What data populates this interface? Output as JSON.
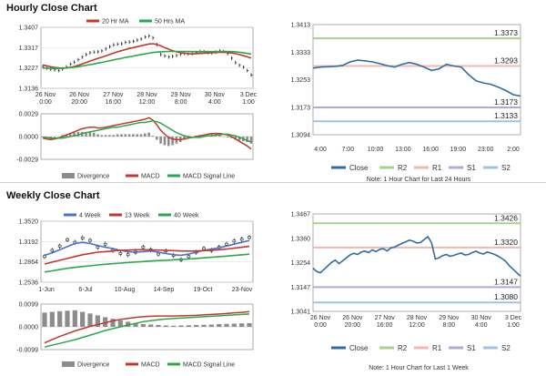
{
  "titles": {
    "hourly": "Hourly Close Chart",
    "weekly": "Weekly Close Chart"
  },
  "colors": {
    "ma_short": "#c0392b",
    "ma_long": "#2aa84a",
    "ma_4w": "#4b6fd1",
    "close": "#2e6da4",
    "r2": "#a9d18e",
    "r1": "#f4b6b0",
    "s1": "#b4a7d6",
    "s2": "#9dc3e6",
    "divergence": "#8c8c8c",
    "macd": "#c0392b",
    "signal": "#2aa84a"
  },
  "chart_data": [
    {
      "id": "hourly_price",
      "type": "line",
      "series": [
        {
          "name": "20 Hr MA",
          "color_key": "ma_short"
        },
        {
          "name": "50 Hrs MA",
          "color_key": "ma_long"
        }
      ],
      "y_ticks": [
        "1.3407",
        "1.3317",
        "1.3227",
        "1.3136"
      ],
      "ylim": [
        1.3136,
        1.3407
      ],
      "x_ticks": [
        [
          "26 Nov",
          "0:00"
        ],
        [
          "26 Nov",
          "20:00"
        ],
        [
          "27 Nov",
          "16:00"
        ],
        [
          "28 Nov",
          "12:00"
        ],
        [
          "29 Nov",
          "8:00"
        ],
        [
          "30 Nov",
          "4:00"
        ],
        [
          "3 Dec",
          "1:00"
        ]
      ],
      "price": [
        1.3232,
        1.3226,
        1.3221,
        1.3218,
        1.3215,
        1.3222,
        1.3231,
        1.3243,
        1.3252,
        1.3263,
        1.3275,
        1.3286,
        1.3294,
        1.3297,
        1.3298,
        1.3302,
        1.3311,
        1.3321,
        1.3329,
        1.3332,
        1.3334,
        1.334,
        1.3342,
        1.3345,
        1.335,
        1.3355,
        1.3364,
        1.3368,
        1.336,
        1.333,
        1.3286,
        1.328,
        1.3275,
        1.3278,
        1.3282,
        1.3287,
        1.3291,
        1.3289,
        1.329,
        1.3295,
        1.33,
        1.3298,
        1.3295,
        1.3293,
        1.3297,
        1.3302,
        1.33,
        1.329,
        1.327,
        1.325,
        1.3238,
        1.323,
        1.3215,
        1.3195
      ],
      "ma20": [
        1.324,
        1.3236,
        1.3232,
        1.3229,
        1.3227,
        1.3226,
        1.3227,
        1.3229,
        1.3233,
        1.3238,
        1.3244,
        1.325,
        1.3257,
        1.3263,
        1.3269,
        1.3274,
        1.328,
        1.3286,
        1.3292,
        1.3298,
        1.3303,
        1.3308,
        1.3313,
        1.3317,
        1.3321,
        1.3325,
        1.3329,
        1.3333,
        1.3334,
        1.3331,
        1.3325,
        1.3317,
        1.331,
        1.3303,
        1.3298,
        1.3294,
        1.3292,
        1.329,
        1.3289,
        1.329,
        1.3291,
        1.3292,
        1.3293,
        1.3294,
        1.3295,
        1.3296,
        1.3296,
        1.3295,
        1.3293,
        1.329,
        1.3286,
        1.3281,
        1.3276,
        1.327
      ],
      "ma50": [
        1.3226,
        1.3225,
        1.3224,
        1.3224,
        1.3224,
        1.3225,
        1.3226,
        1.3228,
        1.323,
        1.3232,
        1.3235,
        1.3238,
        1.3241,
        1.3244,
        1.3248,
        1.3251,
        1.3255,
        1.3258,
        1.3262,
        1.3266,
        1.3269,
        1.3273,
        1.3276,
        1.3279,
        1.3283,
        1.3286,
        1.3289,
        1.3292,
        1.3295,
        1.3297,
        1.3298,
        1.3299,
        1.33,
        1.33,
        1.33,
        1.33,
        1.33,
        1.33,
        1.3299,
        1.3299,
        1.3299,
        1.3299,
        1.3299,
        1.3299,
        1.3299,
        1.33,
        1.33,
        1.33,
        1.3299,
        1.3298,
        1.3296,
        1.3294,
        1.3291,
        1.3288
      ]
    },
    {
      "id": "hourly_macd",
      "type": "bar+line",
      "y_ticks": [
        "0.0029",
        "0.0000",
        "-0.0029"
      ],
      "ylim": [
        -0.0029,
        0.0029
      ],
      "legend": [
        "Divergence",
        "MACD",
        "MACD Signal Line"
      ],
      "macd": [
        -0.0002,
        -0.0003,
        -0.0004,
        -0.0003,
        -0.0002,
        0.0,
        0.0002,
        0.0004,
        0.0006,
        0.0008,
        0.001,
        0.0011,
        0.0012,
        0.0012,
        0.0011,
        0.0011,
        0.0012,
        0.0013,
        0.0014,
        0.0015,
        0.0016,
        0.0017,
        0.0018,
        0.0019,
        0.002,
        0.0021,
        0.0022,
        0.0024,
        0.0021,
        0.0015,
        0.0008,
        0.0003,
        -0.0001,
        -0.0003,
        -0.0004,
        -0.0004,
        -0.0003,
        -0.0002,
        -0.0001,
        0.0,
        0.0001,
        0.0002,
        0.0003,
        0.0004,
        0.0004,
        0.0004,
        0.0003,
        0.0002,
        0.0,
        -0.0003,
        -0.0006,
        -0.0009,
        -0.0012,
        -0.0016
      ],
      "signal": [
        -0.0001,
        -0.0001,
        -0.0002,
        -0.0002,
        -0.0002,
        -0.0002,
        -0.0001,
        0.0,
        0.0001,
        0.0002,
        0.0004,
        0.0005,
        0.0006,
        0.0007,
        0.0008,
        0.0009,
        0.001,
        0.0011,
        0.0012,
        0.0012,
        0.0013,
        0.0014,
        0.0015,
        0.0016,
        0.0017,
        0.0018,
        0.0018,
        0.0019,
        0.002,
        0.0019,
        0.0017,
        0.0014,
        0.0011,
        0.0008,
        0.0005,
        0.0003,
        0.0001,
        0.0,
        -0.0001,
        -0.0001,
        -0.0001,
        0.0,
        0.0001,
        0.0001,
        0.0002,
        0.0002,
        0.0003,
        0.0003,
        0.0002,
        0.0001,
        -0.0001,
        -0.0003,
        -0.0005,
        -0.0007
      ]
    },
    {
      "id": "hourly_close",
      "type": "line",
      "y_ticks": [
        "1.3413",
        "1.3333",
        "1.3253",
        "1.3173",
        "1.3094"
      ],
      "ylim": [
        1.3094,
        1.3413
      ],
      "x_ticks": [
        "4:00",
        "7:00",
        "10:00",
        "13:00",
        "16:00",
        "19:00",
        "23:00",
        "2:00"
      ],
      "levels": [
        {
          "name": "R2",
          "value": 1.3373,
          "label": "1.3373",
          "color_key": "r2"
        },
        {
          "name": "R1",
          "value": 1.3293,
          "label": "1.3293",
          "color_key": "r1"
        },
        {
          "name": "S1",
          "value": 1.3173,
          "label": "1.3173",
          "color_key": "s1"
        },
        {
          "name": "S2",
          "value": 1.3133,
          "label": "1.3133",
          "color_key": "s2"
        }
      ],
      "close": [
        1.3287,
        1.329,
        1.3291,
        1.3292,
        1.3295,
        1.3305,
        1.331,
        1.3308,
        1.3305,
        1.33,
        1.3294,
        1.329,
        1.3298,
        1.3303,
        1.3298,
        1.329,
        1.328,
        1.3285,
        1.3298,
        1.3293,
        1.329,
        1.3268,
        1.325,
        1.3244,
        1.324,
        1.3232,
        1.3222,
        1.321,
        1.3206
      ],
      "legend": [
        "Close",
        "R2",
        "R1",
        "S1",
        "S2"
      ],
      "note": "Note: 1 Hour Chart for Last 24 Hours"
    },
    {
      "id": "weekly_price",
      "type": "line",
      "series": [
        {
          "name": "4 Week",
          "color_key": "ma_4w"
        },
        {
          "name": "13 Week",
          "color_key": "ma_short"
        },
        {
          "name": "40 Week",
          "color_key": "ma_long"
        }
      ],
      "y_ticks": [
        "1.3520",
        "1.3192",
        "1.2864",
        "1.2536"
      ],
      "ylim": [
        1.2536,
        1.352
      ],
      "x_ticks": [
        "1-Jun",
        "6-Jul",
        "10-Aug",
        "14-Sep",
        "19-Oct",
        "23-Nov"
      ],
      "price": [
        1.295,
        1.305,
        1.312,
        1.322,
        1.318,
        1.325,
        1.321,
        1.31,
        1.315,
        1.305,
        1.3,
        1.298,
        1.302,
        1.31,
        1.306,
        1.299,
        1.304,
        1.297,
        1.29,
        1.295,
        1.302,
        1.308,
        1.305,
        1.31,
        1.315,
        1.32,
        1.323,
        1.326
      ],
      "ma4": [
        1.297,
        1.301,
        1.306,
        1.311,
        1.316,
        1.318,
        1.316,
        1.313,
        1.31,
        1.308,
        1.305,
        1.303,
        1.302,
        1.303,
        1.304,
        1.302,
        1.3,
        1.298,
        1.297,
        1.299,
        1.302,
        1.305,
        1.307,
        1.309,
        1.312,
        1.315,
        1.318,
        1.321
      ],
      "ma13": [
        1.283,
        1.286,
        1.289,
        1.292,
        1.295,
        1.298,
        1.3,
        1.302,
        1.303,
        1.304,
        1.305,
        1.3055,
        1.306,
        1.306,
        1.3058,
        1.3055,
        1.305,
        1.3045,
        1.304,
        1.3038,
        1.304,
        1.3045,
        1.305,
        1.306,
        1.307,
        1.3085,
        1.31,
        1.3115
      ],
      "ma40": [
        1.27,
        1.272,
        1.274,
        1.276,
        1.2775,
        1.279,
        1.28,
        1.2815,
        1.2825,
        1.2835,
        1.2845,
        1.2855,
        1.2862,
        1.287,
        1.2878,
        1.2885,
        1.289,
        1.2898,
        1.2905,
        1.2912,
        1.292,
        1.293,
        1.2938,
        1.2948,
        1.2958,
        1.2968,
        1.2978,
        1.2988
      ]
    },
    {
      "id": "weekly_macd",
      "type": "bar+line",
      "y_ticks": [
        "0.0099",
        "0.0000",
        "-0.0099"
      ],
      "ylim": [
        -0.0099,
        0.0099
      ],
      "legend": [
        "Divergence",
        "MACD",
        "MACD Signal Line"
      ],
      "divergence": [
        0.0062,
        0.0065,
        0.0068,
        0.007,
        0.0072,
        0.0065,
        0.0058,
        0.005,
        0.0042,
        0.0035,
        0.0028,
        0.0022,
        0.0016,
        0.0012,
        0.001,
        0.0008,
        0.0006,
        0.0005,
        0.0006,
        0.0007,
        0.0008,
        0.0009,
        0.001,
        0.0012,
        0.0013,
        0.0014,
        0.0015,
        0.0016
      ],
      "macd": [
        -0.007,
        -0.0055,
        -0.0042,
        -0.003,
        -0.0018,
        -0.0008,
        0.0002,
        0.001,
        0.0018,
        0.0026,
        0.0032,
        0.0037,
        0.0041,
        0.0044,
        0.0046,
        0.0047,
        0.0047,
        0.0047,
        0.0048,
        0.0049,
        0.005,
        0.0052,
        0.0054,
        0.0056,
        0.0058,
        0.0061,
        0.0063,
        0.0066
      ],
      "signal": [
        -0.0088,
        -0.008,
        -0.0072,
        -0.0064,
        -0.0056,
        -0.0046,
        -0.0036,
        -0.0026,
        -0.0016,
        -0.0008,
        0.0,
        0.0008,
        0.0015,
        0.0022,
        0.0027,
        0.0031,
        0.0034,
        0.0036,
        0.0038,
        0.004,
        0.0042,
        0.0044,
        0.0046,
        0.0048,
        0.005,
        0.0052,
        0.0054,
        0.0056
      ]
    },
    {
      "id": "weekly_close",
      "type": "line",
      "y_ticks": [
        "1.3467",
        "1.3360",
        "1.3254",
        "1.3147",
        "1.3041"
      ],
      "ylim": [
        1.3041,
        1.3467
      ],
      "x_ticks": [
        [
          "26 Nov",
          "0:00"
        ],
        [
          "26 Nov",
          "20:00"
        ],
        [
          "27 Nov",
          "16:00"
        ],
        [
          "28 Nov",
          "12:00"
        ],
        [
          "29 Nov",
          "8:00"
        ],
        [
          "30 Nov",
          "4:00"
        ],
        [
          "3 Dec",
          "1:00"
        ]
      ],
      "levels": [
        {
          "name": "R2",
          "value": 1.3426,
          "label": "1.3426",
          "color_key": "r2"
        },
        {
          "name": "R1",
          "value": 1.332,
          "label": "1.3320",
          "color_key": "r1"
        },
        {
          "name": "S1",
          "value": 1.3147,
          "label": "1.3147",
          "color_key": "s1"
        },
        {
          "name": "S2",
          "value": 1.308,
          "label": "1.3080",
          "color_key": "s2"
        }
      ],
      "close": [
        1.323,
        1.3215,
        1.321,
        1.3225,
        1.324,
        1.3255,
        1.3265,
        1.325,
        1.3262,
        1.3275,
        1.3288,
        1.3295,
        1.329,
        1.33,
        1.3305,
        1.3298,
        1.331,
        1.3302,
        1.3312,
        1.3315,
        1.3305,
        1.3318,
        1.3322,
        1.333,
        1.3338,
        1.3345,
        1.3352,
        1.3348,
        1.334,
        1.3342,
        1.3355,
        1.3368,
        1.334,
        1.327,
        1.3275,
        1.3285,
        1.329,
        1.3282,
        1.3286,
        1.3292,
        1.3296,
        1.3288,
        1.329,
        1.3298,
        1.3304,
        1.3296,
        1.3292,
        1.33,
        1.3296,
        1.329,
        1.3282,
        1.3272,
        1.326,
        1.324,
        1.3225,
        1.321,
        1.3195
      ],
      "legend": [
        "Close",
        "R2",
        "R1",
        "S1",
        "S2"
      ],
      "note": "Note: 1 Hour Chart for Last 1 Week"
    }
  ]
}
